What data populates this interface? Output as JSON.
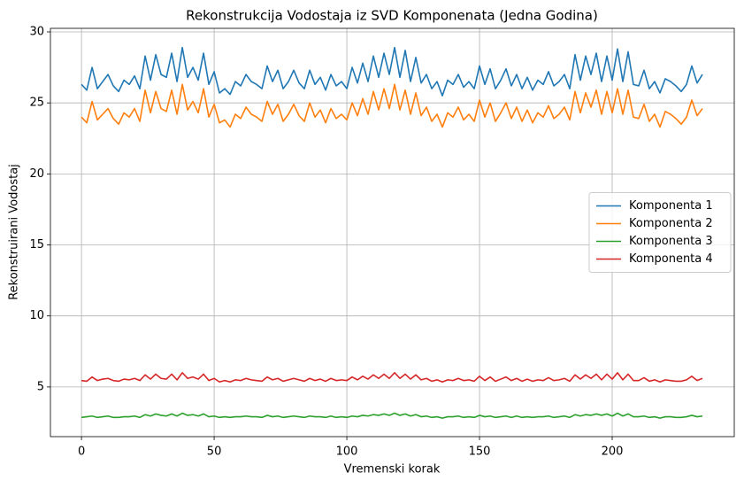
{
  "chart_data": {
    "type": "line",
    "title": "Rekonstrukcija Vodostaja iz SVD Komponenata (Jedna Godina)",
    "xlabel": "Vremenski korak",
    "ylabel": "Rekonstruirani Vodostaj",
    "x": [
      0,
      2,
      4,
      6,
      8,
      10,
      12,
      14,
      16,
      18,
      20,
      22,
      24,
      26,
      28,
      30,
      32,
      34,
      36,
      38,
      40,
      42,
      44,
      46,
      48,
      50,
      52,
      54,
      56,
      58,
      60,
      62,
      64,
      66,
      68,
      70,
      72,
      74,
      76,
      78,
      80,
      82,
      84,
      86,
      88,
      90,
      92,
      94,
      96,
      98,
      100,
      102,
      104,
      106,
      108,
      110,
      112,
      114,
      116,
      118,
      120,
      122,
      124,
      126,
      128,
      130,
      132,
      134,
      136,
      138,
      140,
      142,
      144,
      146,
      148,
      150,
      152,
      154,
      156,
      158,
      160,
      162,
      164,
      166,
      168,
      170,
      172,
      174,
      176,
      178,
      180,
      182,
      184,
      186,
      188,
      190,
      192,
      194,
      196,
      198,
      200,
      202,
      204,
      206,
      208,
      210,
      212,
      214,
      216,
      218,
      220,
      222,
      224,
      226,
      228,
      230,
      232,
      234
    ],
    "series": [
      {
        "name": "Komponenta 1",
        "color": "#1f77b4",
        "values": [
          26.3,
          25.9,
          27.5,
          26.0,
          26.5,
          27.0,
          26.2,
          25.8,
          26.6,
          26.3,
          26.9,
          26.0,
          28.3,
          26.6,
          28.4,
          27.0,
          26.8,
          28.5,
          26.5,
          28.9,
          26.8,
          27.5,
          26.6,
          28.5,
          26.3,
          27.2,
          25.7,
          26.0,
          25.6,
          26.5,
          26.2,
          27.0,
          26.5,
          26.3,
          26.0,
          27.6,
          26.5,
          27.3,
          26.0,
          26.5,
          27.3,
          26.4,
          26.0,
          27.3,
          26.3,
          26.8,
          25.9,
          27.0,
          26.2,
          26.5,
          26.0,
          27.5,
          26.4,
          27.8,
          26.5,
          28.3,
          26.8,
          28.5,
          27.0,
          28.9,
          26.8,
          28.7,
          26.5,
          28.2,
          26.4,
          27.0,
          26.0,
          26.5,
          25.5,
          26.6,
          26.3,
          27.0,
          26.1,
          26.5,
          26.0,
          27.6,
          26.3,
          27.4,
          26.0,
          26.6,
          27.4,
          26.2,
          27.0,
          26.0,
          26.8,
          25.9,
          26.6,
          26.3,
          27.2,
          26.2,
          26.5,
          27.0,
          26.0,
          28.4,
          26.6,
          28.3,
          27.0,
          28.5,
          26.5,
          28.3,
          26.6,
          28.8,
          26.5,
          28.6,
          26.3,
          26.2,
          27.3,
          26.0,
          26.5,
          25.7,
          26.7,
          26.5,
          26.2,
          25.8,
          26.3,
          27.6,
          26.4,
          27.0
        ]
      },
      {
        "name": "Komponenta 2",
        "color": "#ff7f0e",
        "values": [
          24.0,
          23.6,
          25.1,
          23.8,
          24.2,
          24.6,
          23.9,
          23.5,
          24.3,
          24.0,
          24.6,
          23.7,
          25.9,
          24.3,
          25.8,
          24.6,
          24.4,
          25.9,
          24.2,
          26.3,
          24.5,
          25.1,
          24.3,
          26.0,
          24.0,
          24.9,
          23.6,
          23.8,
          23.3,
          24.2,
          23.9,
          24.7,
          24.2,
          24.0,
          23.7,
          25.1,
          24.2,
          24.9,
          23.7,
          24.2,
          24.9,
          24.1,
          23.7,
          25.0,
          24.0,
          24.5,
          23.6,
          24.6,
          23.9,
          24.2,
          23.8,
          25.0,
          24.1,
          25.3,
          24.2,
          25.8,
          24.5,
          26.0,
          24.6,
          26.3,
          24.5,
          25.9,
          24.2,
          25.7,
          24.1,
          24.7,
          23.7,
          24.2,
          23.3,
          24.3,
          24.0,
          24.7,
          23.8,
          24.2,
          23.7,
          25.2,
          24.0,
          25.0,
          23.7,
          24.3,
          25.0,
          23.9,
          24.7,
          23.7,
          24.5,
          23.6,
          24.3,
          24.0,
          24.8,
          23.9,
          24.2,
          24.7,
          23.8,
          25.8,
          24.3,
          25.7,
          24.7,
          25.9,
          24.2,
          25.8,
          24.3,
          26.0,
          24.2,
          25.9,
          24.0,
          23.9,
          24.9,
          23.7,
          24.2,
          23.3,
          24.4,
          24.2,
          23.9,
          23.5,
          24.0,
          25.2,
          24.1,
          24.6
        ]
      },
      {
        "name": "Komponenta 3",
        "color": "#2ca02c",
        "values": [
          2.85,
          2.9,
          2.95,
          2.85,
          2.9,
          2.95,
          2.85,
          2.85,
          2.9,
          2.9,
          2.95,
          2.85,
          3.05,
          2.95,
          3.1,
          3.0,
          2.95,
          3.1,
          2.95,
          3.15,
          3.0,
          3.05,
          2.95,
          3.1,
          2.9,
          2.95,
          2.85,
          2.9,
          2.85,
          2.9,
          2.9,
          2.95,
          2.9,
          2.9,
          2.85,
          3.0,
          2.9,
          2.95,
          2.85,
          2.9,
          2.95,
          2.9,
          2.85,
          2.95,
          2.9,
          2.9,
          2.85,
          2.95,
          2.85,
          2.9,
          2.85,
          2.95,
          2.9,
          3.0,
          2.95,
          3.05,
          3.0,
          3.1,
          3.0,
          3.15,
          3.0,
          3.1,
          2.95,
          3.05,
          2.9,
          2.95,
          2.85,
          2.9,
          2.8,
          2.9,
          2.9,
          2.95,
          2.85,
          2.9,
          2.85,
          3.0,
          2.9,
          2.95,
          2.85,
          2.9,
          2.95,
          2.85,
          2.95,
          2.85,
          2.9,
          2.85,
          2.9,
          2.9,
          2.95,
          2.85,
          2.9,
          2.95,
          2.85,
          3.05,
          2.95,
          3.05,
          3.0,
          3.1,
          3.0,
          3.1,
          2.95,
          3.15,
          2.95,
          3.1,
          2.9,
          2.9,
          2.95,
          2.85,
          2.9,
          2.8,
          2.9,
          2.9,
          2.85,
          2.85,
          2.9,
          3.0,
          2.9,
          2.95
        ]
      },
      {
        "name": "Komponenta 4",
        "color": "#d62728",
        "values": [
          5.45,
          5.4,
          5.7,
          5.45,
          5.55,
          5.6,
          5.45,
          5.4,
          5.55,
          5.5,
          5.6,
          5.45,
          5.85,
          5.55,
          5.9,
          5.6,
          5.55,
          5.9,
          5.5,
          6.0,
          5.6,
          5.7,
          5.55,
          5.9,
          5.45,
          5.6,
          5.35,
          5.45,
          5.35,
          5.5,
          5.45,
          5.6,
          5.5,
          5.45,
          5.4,
          5.7,
          5.5,
          5.6,
          5.4,
          5.5,
          5.6,
          5.5,
          5.4,
          5.6,
          5.45,
          5.55,
          5.4,
          5.6,
          5.45,
          5.5,
          5.45,
          5.7,
          5.5,
          5.75,
          5.55,
          5.85,
          5.6,
          5.9,
          5.6,
          6.0,
          5.6,
          5.9,
          5.55,
          5.85,
          5.5,
          5.6,
          5.4,
          5.5,
          5.35,
          5.5,
          5.45,
          5.6,
          5.45,
          5.5,
          5.4,
          5.75,
          5.45,
          5.7,
          5.4,
          5.55,
          5.7,
          5.45,
          5.6,
          5.4,
          5.55,
          5.4,
          5.5,
          5.45,
          5.65,
          5.45,
          5.5,
          5.6,
          5.4,
          5.85,
          5.55,
          5.85,
          5.6,
          5.9,
          5.5,
          5.9,
          5.55,
          6.0,
          5.5,
          5.9,
          5.45,
          5.45,
          5.65,
          5.4,
          5.5,
          5.35,
          5.5,
          5.45,
          5.4,
          5.4,
          5.5,
          5.75,
          5.45,
          5.6
        ]
      }
    ],
    "xlim": [
      -11.7,
      246
    ],
    "xticks": [
      0,
      50,
      100,
      150,
      200
    ],
    "ylim": [
      1.5,
      30.25
    ],
    "yticks": [
      5,
      10,
      15,
      20,
      25,
      30
    ],
    "grid": true,
    "legend": "center right"
  }
}
